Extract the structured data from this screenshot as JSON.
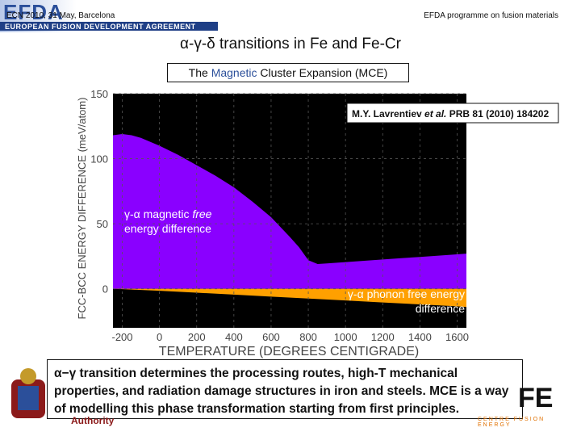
{
  "header": {
    "logo": "EFDA",
    "tagline": "EUROPEAN FUSION DEVELOPMENT AGREEMENT",
    "conference": "ECN 2010, 31 May, Barcelona",
    "programme": "EFDA programme on fusion materials"
  },
  "title": "α-γ-δ transitions in Fe and Fe-Cr",
  "subtitle": {
    "pre": "The ",
    "accent": "Magnetic",
    "post": " Cluster Expansion (MCE)"
  },
  "colors": {
    "plot_bg": "#000000",
    "magnetic": "#8a00ff",
    "phonon": "#ffa000",
    "accent": "#2b4f9a"
  },
  "chart_data": {
    "type": "area",
    "xlabel": "TEMPERATURE (DEGREES CENTIGRADE)",
    "ylabel": "FCC-BCC ENERGY DIFFERENCE (meV/atom)",
    "xlim": [
      -250,
      1650
    ],
    "ylim": [
      -30,
      150
    ],
    "xticks": [
      -200,
      0,
      200,
      400,
      600,
      800,
      1000,
      1200,
      1400,
      1600
    ],
    "yticks": [
      0,
      50,
      100,
      150
    ],
    "grid": true,
    "reference": "M.Y. Lavrentiev et al. PRB  81 (2010) 184202",
    "series": [
      {
        "label": "γ-α magnetic free energy difference",
        "color": "#8a00ff",
        "x": [
          -250,
          -200,
          -150,
          -100,
          0,
          100,
          200,
          300,
          400,
          500,
          600,
          700,
          750,
          800,
          850,
          900,
          1000,
          1100,
          1200,
          1300,
          1400,
          1500,
          1600,
          1650
        ],
        "y": [
          118,
          119,
          118,
          116,
          110,
          103,
          95,
          87,
          78,
          67,
          55,
          40,
          32,
          22,
          19,
          19.5,
          20.5,
          21.5,
          22.5,
          23.5,
          24.5,
          25.5,
          26.5,
          27
        ]
      },
      {
        "label": "γ-α phonon free energy difference",
        "color": "#ffa000",
        "x": [
          -250,
          0,
          200,
          400,
          600,
          800,
          1000,
          1200,
          1400,
          1600,
          1650
        ],
        "y": [
          0,
          -1.5,
          -3,
          -4.5,
          -6,
          -7.5,
          -9,
          -10.5,
          -12,
          -13.5,
          -14
        ]
      }
    ],
    "annotations": {
      "magnetic_line1": "γ-α magnetic ",
      "magnetic_italic": "free",
      "magnetic_line2": "energy difference",
      "phonon_line1": "γ-α phonon free energy",
      "phonon_line2": "difference",
      "ref_author": "M.Y. Lavrentiev ",
      "ref_etal": "et al.",
      "ref_journal": " PRB  81 (2010) 184202"
    }
  },
  "caption": "α−γ transition determines the processing routes, high-T mechanical properties, and radiation damage structures in iron and steels. MCE is a way of modelling this phase transformation starting from first principles.",
  "footer": {
    "left_text": "Authority",
    "ccfe": "FE",
    "ccfe_sub": "CENTRE FUSION ENERGY"
  }
}
